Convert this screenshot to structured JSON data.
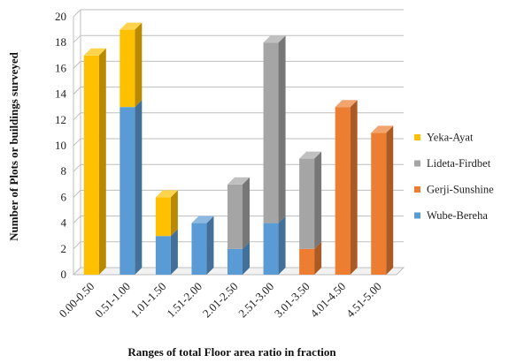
{
  "chart_data": {
    "type": "bar",
    "stacked": true,
    "style": "3d-column",
    "categories": [
      "0.00-0.50",
      "0.51-1.00",
      "1.01-1.50",
      "1.51-2.00",
      "2.01-2.50",
      "2.51-3.00",
      "3.01-3.50",
      "4.01-4.50",
      "4.51-5.00"
    ],
    "series": [
      {
        "name": "Wube-Bereha",
        "color": "#5b9bd5",
        "values": [
          0,
          13,
          3,
          4,
          2,
          4,
          0,
          0,
          0
        ]
      },
      {
        "name": "Gerji-Sunshine",
        "color": "#ed7d31",
        "values": [
          0,
          0,
          0,
          0,
          0,
          0,
          2,
          13,
          11
        ]
      },
      {
        "name": "Lideta-Firdbet",
        "color": "#a5a5a5",
        "values": [
          0,
          0,
          0,
          0,
          5,
          14,
          7,
          0,
          0
        ]
      },
      {
        "name": "Yeka-Ayat",
        "color": "#ffc000",
        "values": [
          17,
          6,
          3,
          0,
          0,
          0,
          0,
          0,
          0
        ]
      }
    ],
    "legend_order": [
      "Yeka-Ayat",
      "Lideta-Firdbet",
      "Gerji-Sunshine",
      "Wube-Bereha"
    ],
    "legend_position": "right",
    "xlabel": "Ranges of total Floor area ratio in fraction",
    "ylabel": "Number of Plots or buildings surveyed",
    "ylim": [
      0,
      20
    ],
    "yticks": [
      0,
      2,
      4,
      6,
      8,
      10,
      12,
      14,
      16,
      18,
      20
    ],
    "grid": true
  }
}
